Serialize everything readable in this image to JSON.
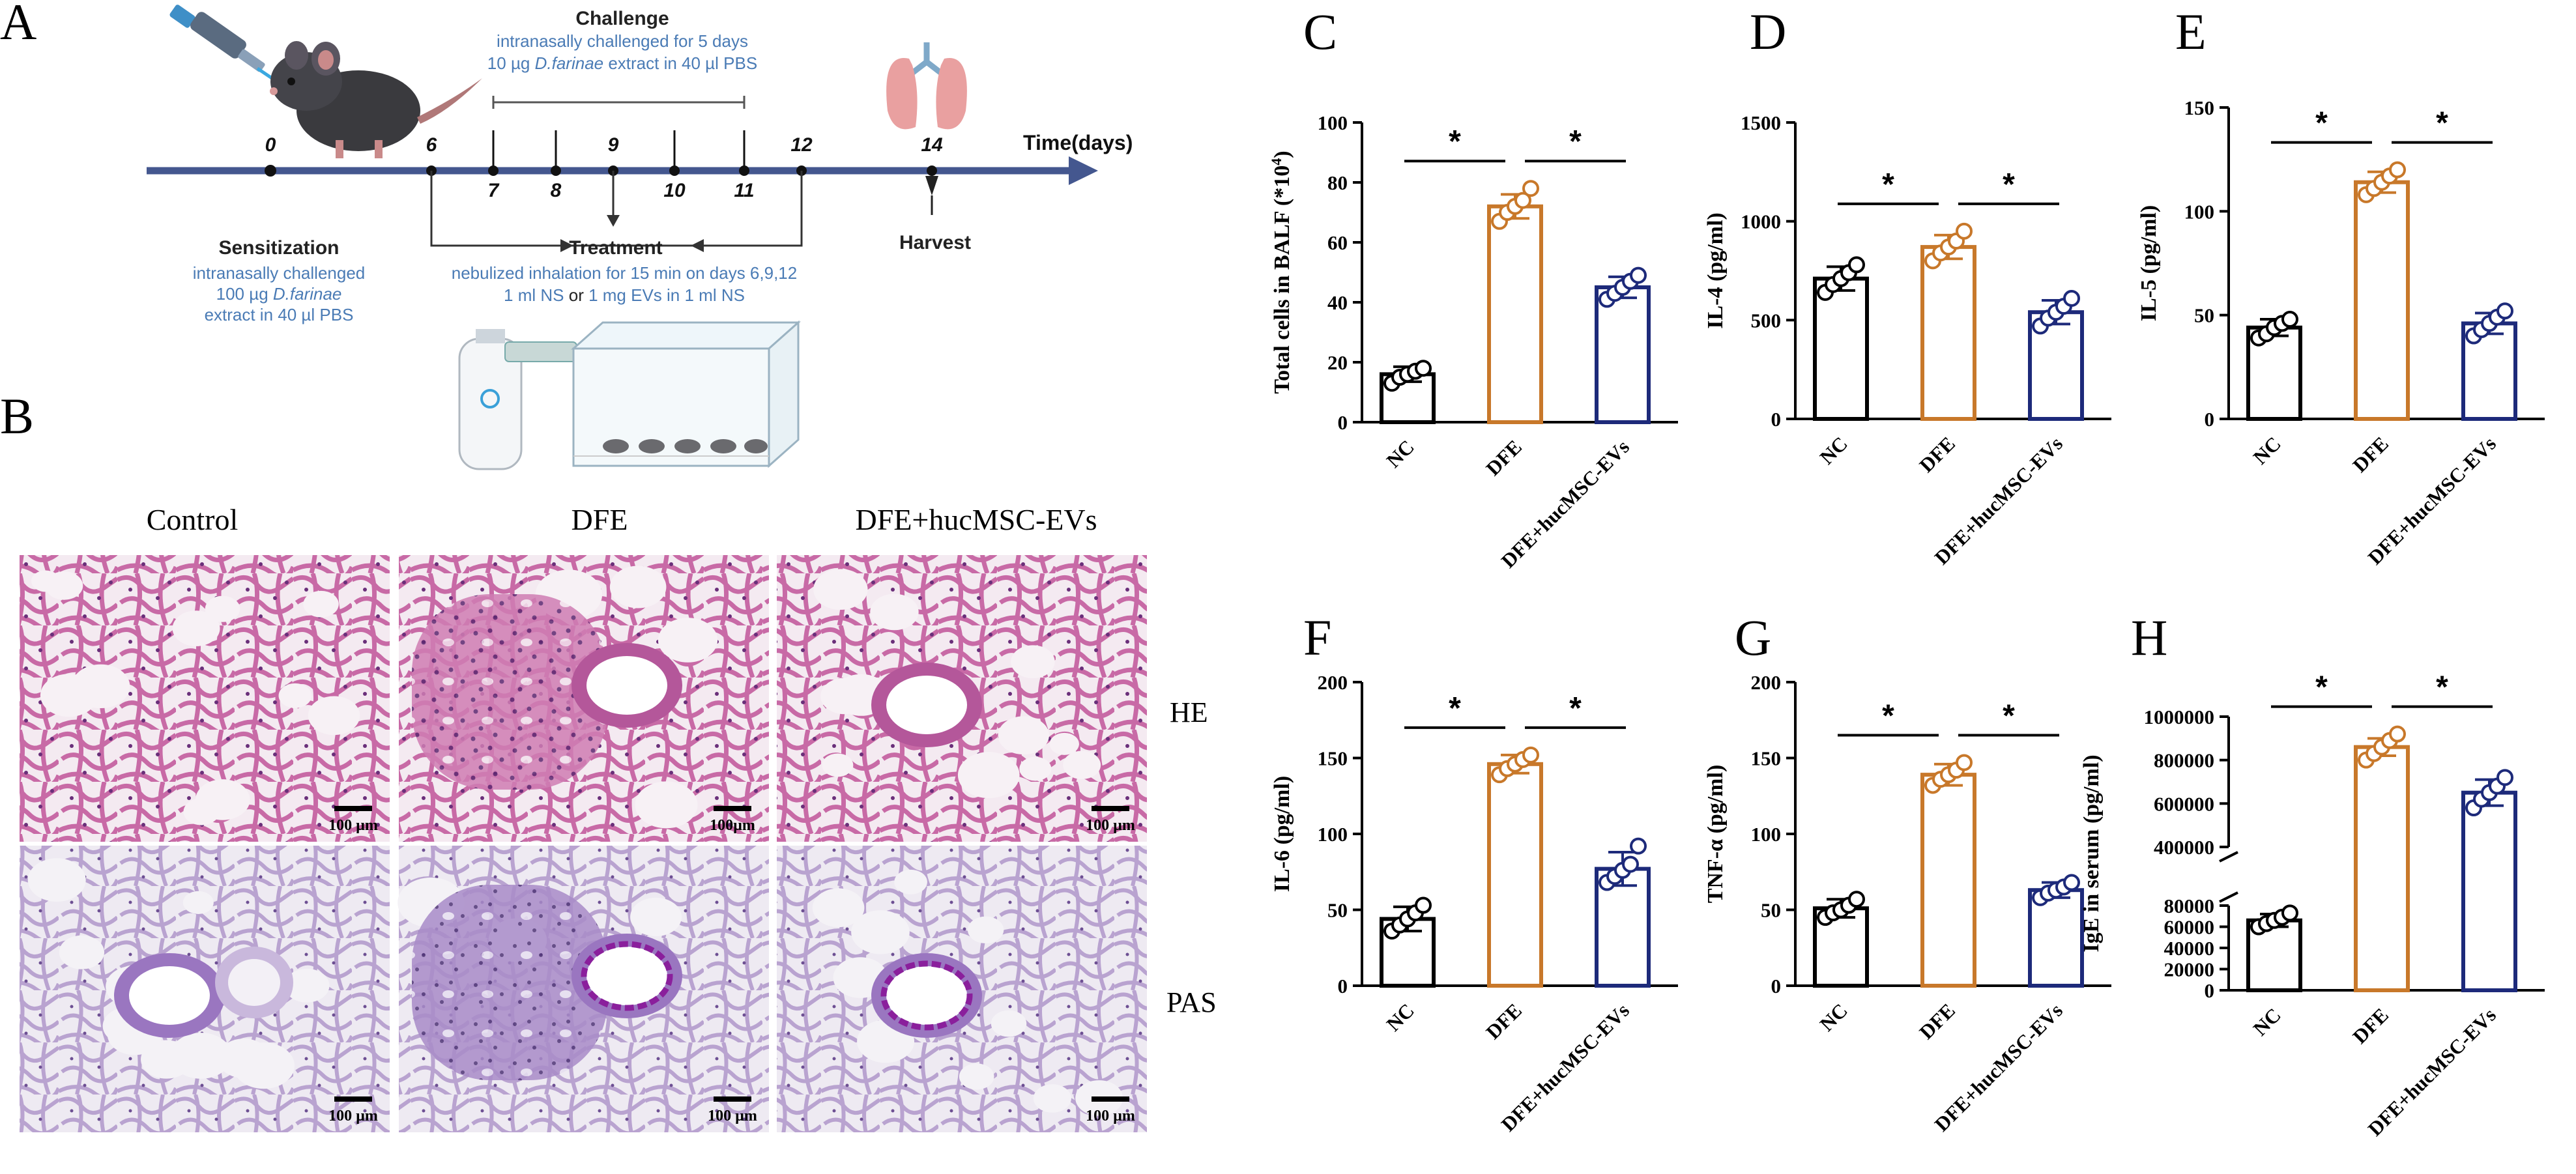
{
  "panel_letters": {
    "a": "A",
    "b": "B",
    "c": "C",
    "d": "D",
    "e": "E",
    "f": "F",
    "g": "G",
    "h": "H"
  },
  "timeline": {
    "axis_label": "Time(days)",
    "days": [
      "0",
      "6",
      "7",
      "8",
      "9",
      "10",
      "11",
      "12",
      "14"
    ],
    "challenge": {
      "title": "Challenge",
      "line1": "intranasally challenged for 5 days",
      "line2_pre": "10 µg ",
      "line2_em": "D.farinae",
      "line2_post": " extract  in 40 µl PBS"
    },
    "sensitization": {
      "title": "Sensitization",
      "line1": "intranasally challenged",
      "line2_pre": "100 µg ",
      "line2_em": "D.farinae",
      "line3": "extract in 40 µl PBS"
    },
    "treatment": {
      "title": "Treatment",
      "line1": "nebulized inhalation for 15 min on days 6,9,12",
      "line2_a": "1 ml NS",
      "line2_b": " or ",
      "line2_c": "1 mg EVs in 1 ml NS"
    },
    "harvest": "Harvest",
    "colors": {
      "axis": "#44578f",
      "blue_text": "#4a7bb5"
    }
  },
  "histology": {
    "columns": [
      "Control",
      "DFE",
      "DFE+hucMSC-EVs"
    ],
    "rows": [
      "HE",
      "PAS"
    ],
    "scalebars": [
      "100 µm",
      "100µm",
      "100 µm",
      "100 µm",
      "100 µm",
      "100 µm"
    ],
    "colors": {
      "he_bg": "#f2e6ef",
      "he_tissue": "#c86aa6",
      "he_dense": "#a84d91",
      "pas_bg": "#ece8f0",
      "pas_tissue": "#b9a3d0",
      "pas_mucus": "#8a1f9c"
    }
  },
  "chart_data": [
    {
      "id": "C",
      "type": "bar",
      "categories": [
        "NC",
        "DFE",
        "DFE+hucMSC-EVs"
      ],
      "ylabel": "Total cells in BALF (*10⁴)",
      "ylim": [
        0,
        100
      ],
      "yticks": [
        0,
        20,
        40,
        60,
        80,
        100
      ],
      "values": [
        16,
        72,
        45
      ],
      "err": [
        2.5,
        4,
        3.5
      ],
      "points": [
        [
          13,
          15,
          16,
          17,
          18
        ],
        [
          67,
          70,
          72,
          74,
          78
        ],
        [
          41,
          43,
          45,
          47,
          49
        ]
      ],
      "sig": [
        "*",
        "*"
      ]
    },
    {
      "id": "D",
      "type": "bar",
      "categories": [
        "NC",
        "DFE",
        "DFE+hucMSC-EVs"
      ],
      "ylabel": "IL-4 (pg/ml)",
      "ylim": [
        0,
        1500
      ],
      "yticks": [
        0,
        500,
        1000,
        1500
      ],
      "values": [
        710,
        870,
        540
      ],
      "err": [
        60,
        60,
        60
      ],
      "points": [
        [
          640,
          680,
          710,
          740,
          780
        ],
        [
          800,
          840,
          870,
          900,
          950
        ],
        [
          470,
          510,
          540,
          570,
          610
        ]
      ],
      "sig": [
        "*",
        "*"
      ]
    },
    {
      "id": "E",
      "type": "bar",
      "categories": [
        "NC",
        "DFE",
        "DFE+hucMSC-EVs"
      ],
      "ylabel": "IL-5 (pg/ml)",
      "ylim": [
        0,
        150
      ],
      "yticks": [
        0,
        50,
        100,
        150
      ],
      "values": [
        44,
        114,
        46
      ],
      "err": [
        4,
        5,
        5
      ],
      "points": [
        [
          39,
          41,
          44,
          46,
          48
        ],
        [
          108,
          111,
          114,
          117,
          120
        ],
        [
          40,
          43,
          46,
          49,
          52
        ]
      ],
      "sig": [
        "*",
        "*"
      ]
    },
    {
      "id": "F",
      "type": "bar",
      "categories": [
        "NC",
        "DFE",
        "DFE+hucMSC-EVs"
      ],
      "ylabel": "IL-6 (pg/ml)",
      "ylim": [
        0,
        200
      ],
      "yticks": [
        0,
        50,
        100,
        150,
        200
      ],
      "values": [
        44,
        146,
        77
      ],
      "err": [
        8,
        6,
        11
      ],
      "points": [
        [
          36,
          40,
          44,
          48,
          53
        ],
        [
          139,
          143,
          146,
          149,
          152
        ],
        [
          68,
          72,
          76,
          80,
          92
        ]
      ],
      "sig": [
        "*",
        "*"
      ]
    },
    {
      "id": "G",
      "type": "bar",
      "categories": [
        "NC",
        "DFE",
        "DFE+hucMSC-EVs"
      ],
      "ylabel": "TNF-α (pg/ml)",
      "ylim": [
        0,
        200
      ],
      "yticks": [
        0,
        50,
        100,
        150,
        200
      ],
      "values": [
        51,
        139,
        63
      ],
      "err": [
        6,
        7,
        5
      ],
      "points": [
        [
          45,
          48,
          50,
          53,
          57
        ],
        [
          132,
          136,
          139,
          142,
          147
        ],
        [
          58,
          61,
          63,
          65,
          68
        ]
      ],
      "sig": [
        "*",
        "*"
      ]
    },
    {
      "id": "H",
      "type": "bar",
      "categories": [
        "NC",
        "DFE",
        "DFE+hucMSC-EVs"
      ],
      "ylabel": "IgE in serum (pg/ml)",
      "axis_break": true,
      "lower": {
        "ylim": [
          0,
          80000
        ],
        "yticks": [
          0,
          20000,
          40000,
          60000,
          80000
        ]
      },
      "upper": {
        "ylim": [
          400000,
          1000000
        ],
        "yticks": [
          400000,
          600000,
          800000,
          1000000
        ]
      },
      "values": [
        66000,
        860000,
        650000
      ],
      "err": [
        6000,
        40000,
        60000
      ],
      "points": [
        [
          60000,
          63000,
          66000,
          69000,
          73000
        ],
        [
          800000,
          830000,
          860000,
          890000,
          920000
        ],
        [
          580000,
          620000,
          650000,
          680000,
          720000
        ]
      ],
      "sig": [
        "*",
        "*"
      ]
    }
  ],
  "bar_colors": [
    "#000000",
    "#c8782a",
    "#1d2a7a"
  ]
}
